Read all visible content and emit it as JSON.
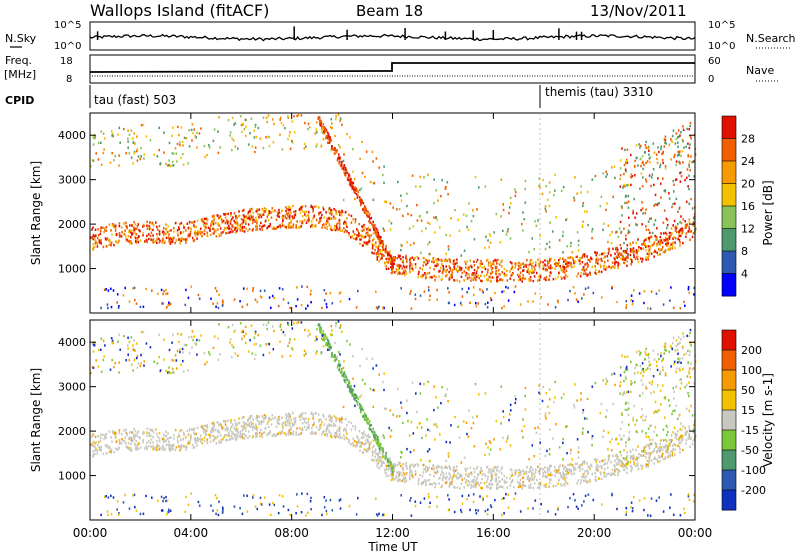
{
  "header": {
    "title": "Wallops Island (fitACF)",
    "beam": "Beam 18",
    "date": "13/Nov/2011"
  },
  "panels": {
    "nsky": {
      "left_label": "N.Sky",
      "right_label": "N.Search",
      "tick_top": "10^5",
      "tick_bottom": "10^0"
    },
    "freq": {
      "left_label1": "Freq.",
      "left_label2": "[MHz]",
      "tick_top": "18",
      "tick_bottom": "8",
      "right_label": "Nave",
      "rtick_top": "60",
      "rtick_bottom": "0"
    },
    "cpid": {
      "label": "CPID",
      "mode1": "tau (fast) 503",
      "mode2": "themis (tau) 3310"
    }
  },
  "colors": {
    "power": [
      "#0000ff",
      "#2f58b0",
      "#4e9a6e",
      "#88c45a",
      "#f2c200",
      "#f59a00",
      "#f06000",
      "#e01000"
    ],
    "velocity": [
      "#1030c0",
      "#2f58b0",
      "#4e9a6e",
      "#7cc83a",
      "#c8c8c0",
      "#f2c200",
      "#f59a00",
      "#f06000",
      "#e01000"
    ]
  },
  "chart_data": [
    {
      "type": "heatmap",
      "name": "power",
      "ylabel": "Slant Range [km]",
      "ylim": [
        0,
        4500
      ],
      "yticks": [
        1000,
        2000,
        3000,
        4000
      ],
      "xlim": [
        0,
        24
      ],
      "colorbar_label": "Power [dB]",
      "colorbar_ticks": [
        "28",
        "24",
        "20",
        "16",
        "12",
        "8",
        "4"
      ],
      "main_band": {
        "hours": [
          0,
          1,
          2,
          3,
          4,
          5,
          6,
          7,
          8,
          9,
          10,
          11,
          12,
          13,
          14,
          15,
          16,
          17,
          18,
          19,
          20,
          21,
          22,
          23,
          24
        ],
        "range_km": [
          1600,
          1700,
          1750,
          1700,
          1750,
          1900,
          2000,
          2050,
          2100,
          2100,
          2000,
          1600,
          1000,
          950,
          900,
          880,
          880,
          880,
          900,
          950,
          1050,
          1200,
          1350,
          1600,
          1850
        ]
      }
    },
    {
      "type": "heatmap",
      "name": "velocity",
      "ylabel": "Slant Range [km]",
      "ylim": [
        0,
        4500
      ],
      "yticks": [
        1000,
        2000,
        3000,
        4000
      ],
      "xlim": [
        0,
        24
      ],
      "colorbar_label": "Velocity [m s-1]",
      "colorbar_ticks": [
        "200",
        "100",
        "50",
        "15",
        "-15",
        "-50",
        "-100",
        "-200"
      ]
    }
  ],
  "xaxis": {
    "label": "Time UT",
    "ticks": [
      "00:00",
      "04:00",
      "08:00",
      "12:00",
      "16:00",
      "20:00",
      "00:00"
    ]
  }
}
